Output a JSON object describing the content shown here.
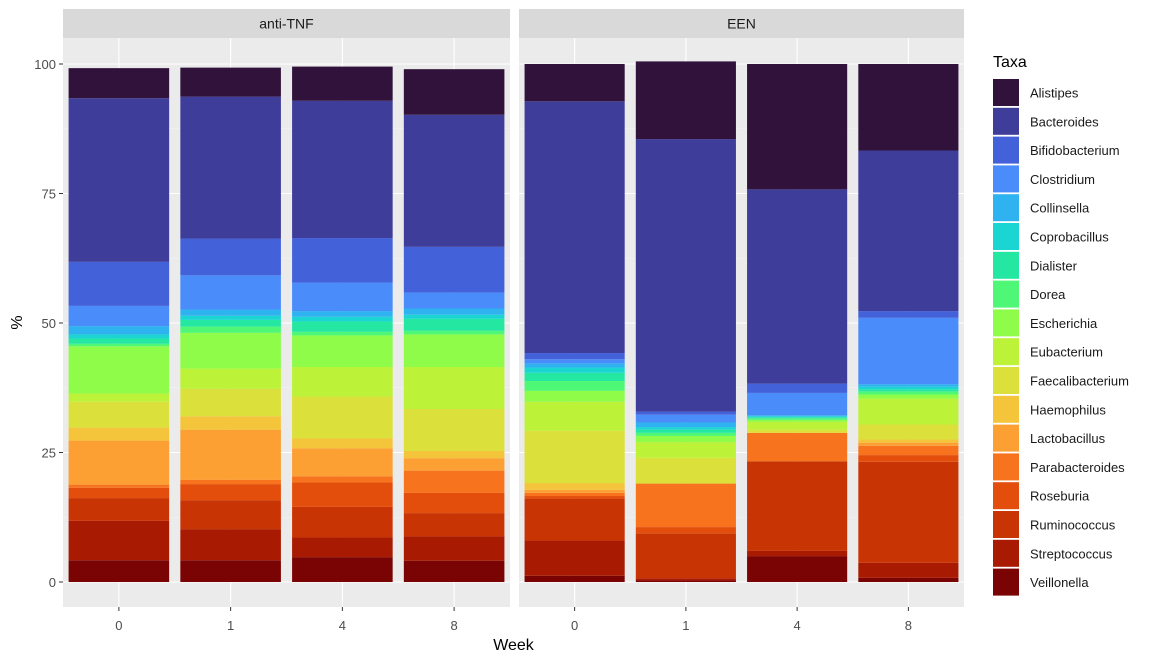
{
  "chart_data": {
    "type": "stacked-bar",
    "ylabel": "%",
    "xlabel": "Week",
    "ylim": [
      0,
      100
    ],
    "yticks": [
      0,
      25,
      50,
      75,
      100
    ],
    "categories": [
      "0",
      "1",
      "4",
      "8"
    ],
    "legend": {
      "title": "Taxa",
      "position": "right",
      "items": [
        {
          "name": "Alistipes",
          "color": "#30123B"
        },
        {
          "name": "Bacteroides",
          "color": "#3E3D9A"
        },
        {
          "name": "Bifidobacterium",
          "color": "#4361D9"
        },
        {
          "name": "Clostridium",
          "color": "#4A8CFA"
        },
        {
          "name": "Collinsella",
          "color": "#2EB2F0"
        },
        {
          "name": "Coprobacillus",
          "color": "#1BD5D2"
        },
        {
          "name": "Dialister",
          "color": "#24E8A2"
        },
        {
          "name": "Dorea",
          "color": "#4FF777"
        },
        {
          "name": "Escherichia",
          "color": "#8FFC4A"
        },
        {
          "name": "Eubacterium",
          "color": "#BCF238"
        },
        {
          "name": "Faecalibacterium",
          "color": "#DCE03A"
        },
        {
          "name": "Haemophilus",
          "color": "#F4C53A"
        },
        {
          "name": "Lactobacillus",
          "color": "#FCA034"
        },
        {
          "name": "Parabacteroides",
          "color": "#F7731D"
        },
        {
          "name": "Roseburia",
          "color": "#E44E0C"
        },
        {
          "name": "Ruminococcus",
          "color": "#C93404"
        },
        {
          "name": "Streptococcus",
          "color": "#A81A02"
        },
        {
          "name": "Veillonella",
          "color": "#7A0403"
        }
      ]
    },
    "panels": [
      {
        "title": "anti-TNF",
        "bars": [
          {
            "week": "0",
            "values": {
              "Veillonella": 4.2,
              "Streptococcus": 7.6,
              "Ruminococcus": 4.4,
              "Roseburia": 2.0,
              "Parabacteroides": 0.6,
              "Lactobacillus": 8.5,
              "Haemophilus": 2.5,
              "Faecalibacterium": 5.0,
              "Eubacterium": 1.6,
              "Escherichia": 9.1,
              "Dorea": 0.5,
              "Dialister": 1.0,
              "Coprobacillus": 0.8,
              "Collinsella": 1.6,
              "Clostridium": 3.9,
              "Bifidobacterium": 8.5,
              "Bacteroides": 31.6,
              "Alistipes": 5.8
            }
          },
          {
            "week": "1",
            "values": {
              "Veillonella": 4.2,
              "Streptococcus": 6.0,
              "Ruminococcus": 5.6,
              "Roseburia": 3.1,
              "Parabacteroides": 0.8,
              "Lactobacillus": 9.7,
              "Haemophilus": 2.6,
              "Faecalibacterium": 5.3,
              "Eubacterium": 3.9,
              "Escherichia": 6.9,
              "Dorea": 1.2,
              "Dialister": 1.3,
              "Coprobacillus": 0.8,
              "Collinsella": 1.2,
              "Clostridium": 6.6,
              "Bifidobacterium": 7.1,
              "Bacteroides": 27.4,
              "Alistipes": 5.6
            }
          },
          {
            "week": "4",
            "values": {
              "Veillonella": 4.8,
              "Streptococcus": 3.8,
              "Ruminococcus": 5.9,
              "Roseburia": 4.7,
              "Parabacteroides": 1.2,
              "Lactobacillus": 5.4,
              "Haemophilus": 1.9,
              "Faecalibacterium": 8.1,
              "Eubacterium": 5.7,
              "Escherichia": 6.1,
              "Dorea": 0.7,
              "Dialister": 2.0,
              "Coprobacillus": 0.9,
              "Collinsella": 1.1,
              "Clostridium": 5.5,
              "Bifidobacterium": 8.6,
              "Bacteroides": 26.5,
              "Alistipes": 6.6
            }
          },
          {
            "week": "8",
            "values": {
              "Veillonella": 4.1,
              "Streptococcus": 4.7,
              "Ruminococcus": 4.5,
              "Roseburia": 3.9,
              "Parabacteroides": 4.3,
              "Lactobacillus": 2.4,
              "Haemophilus": 1.4,
              "Faecalibacterium": 8.1,
              "Eubacterium": 8.1,
              "Escherichia": 6.3,
              "Dorea": 0.7,
              "Dialister": 2.3,
              "Coprobacillus": 0.8,
              "Collinsella": 1.2,
              "Clostridium": 3.1,
              "Bifidobacterium": 8.8,
              "Bacteroides": 25.5,
              "Alistipes": 8.8
            }
          }
        ]
      },
      {
        "title": "EEN",
        "bars": [
          {
            "week": "0",
            "values": {
              "Veillonella": 1.2,
              "Streptococcus": 6.8,
              "Ruminococcus": 8.1,
              "Roseburia": 0.5,
              "Parabacteroides": 0.6,
              "Lactobacillus": 0.6,
              "Haemophilus": 1.3,
              "Faecalibacterium": 10.1,
              "Eubacterium": 5.6,
              "Escherichia": 2.1,
              "Dorea": 1.9,
              "Dialister": 1.6,
              "Coprobacillus": 1.0,
              "Collinsella": 0.8,
              "Clostridium": 0.8,
              "Bifidobacterium": 1.2,
              "Bacteroides": 48.6,
              "Alistipes": 7.2
            }
          },
          {
            "week": "1",
            "values": {
              "Veillonella": 0.3,
              "Streptococcus": 0.4,
              "Ruminococcus": 8.7,
              "Roseburia": 1.2,
              "Parabacteroides": 8.4,
              "Lactobacillus": 0.0,
              "Haemophilus": 0.0,
              "Faecalibacterium": 5.0,
              "Eubacterium": 3.0,
              "Escherichia": 1.2,
              "Dorea": 0.6,
              "Dialister": 0.6,
              "Coprobacillus": 0.5,
              "Collinsella": 0.9,
              "Clostridium": 1.5,
              "Bifidobacterium": 0.6,
              "Bacteroides": 52.6,
              "Alistipes": 15.0
            }
          },
          {
            "week": "4",
            "values": {
              "Veillonella": 5.0,
              "Streptococcus": 1.0,
              "Ruminococcus": 17.3,
              "Roseburia": 0.0,
              "Parabacteroides": 5.5,
              "Lactobacillus": 0.0,
              "Haemophilus": 0.0,
              "Faecalibacterium": 0.6,
              "Eubacterium": 1.5,
              "Escherichia": 0.4,
              "Dorea": 0.3,
              "Dialister": 0.2,
              "Coprobacillus": 0.2,
              "Collinsella": 0.2,
              "Clostridium": 4.3,
              "Bifidobacterium": 1.8,
              "Bacteroides": 37.5,
              "Alistipes": 24.2
            }
          },
          {
            "week": "8",
            "values": {
              "Veillonella": 0.8,
              "Streptococcus": 2.9,
              "Ruminococcus": 19.5,
              "Roseburia": 1.3,
              "Parabacteroides": 1.8,
              "Lactobacillus": 0.6,
              "Haemophilus": 0.6,
              "Faecalibacterium": 2.9,
              "Eubacterium": 5.0,
              "Escherichia": 0.8,
              "Dorea": 0.6,
              "Dialister": 0.4,
              "Coprobacillus": 0.5,
              "Collinsella": 0.5,
              "Clostridium": 12.8,
              "Bifidobacterium": 1.3,
              "Bacteroides": 31.0,
              "Alistipes": 16.7
            }
          }
        ]
      }
    ]
  }
}
